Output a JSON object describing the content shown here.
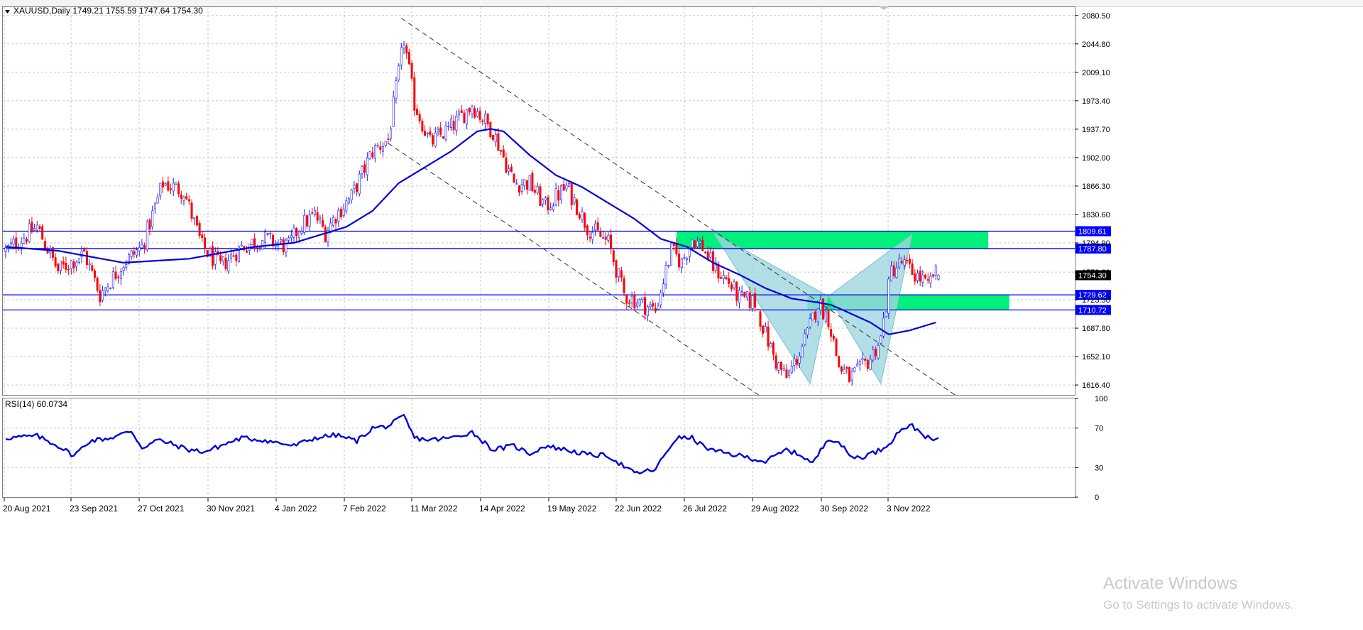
{
  "symbol_header": "XAUUSD,Daily  1749.21 1755.59 1747.64 1754.30",
  "rsi_header": "RSI(14) 60.0734",
  "watermark": {
    "title": "Activate Windows",
    "subtitle": "Go to Settings to activate Windows."
  },
  "colors": {
    "bull": "#1a1aff",
    "bear": "#ff0000",
    "ma": "#0000dd",
    "rsi": "#0000dd",
    "level_line": "#0000ff",
    "zone_fill": "#00f07a",
    "pattern_fill": "#9fd6de",
    "grid": "#c8c8c8",
    "channel": "#303030"
  },
  "chart_data": [
    {
      "type": "candlestick",
      "symbol": "XAUUSD",
      "timeframe": "Daily",
      "last_ohlc": {
        "open": 1749.21,
        "high": 1755.59,
        "low": 1747.64,
        "close": 1754.3
      },
      "current_price_label": "1754.30",
      "y_axis_ticks": [
        "2080.50",
        "2044.80",
        "2009.10",
        "1973.40",
        "1937.70",
        "1902.00",
        "1866.30",
        "1830.60",
        "1794.90",
        "1758.20",
        "1723.50",
        "1687.80",
        "1652.10",
        "1616.40"
      ],
      "ylim": [
        1604,
        2091
      ],
      "x_axis_labels": [
        "20 Aug 2021",
        "23 Sep 2021",
        "27 Oct 2021",
        "30 Nov 2021",
        "4 Jan 2022",
        "7 Feb 2022",
        "11 Mar 2022",
        "14 Apr 2022",
        "19 May 2022",
        "22 Jun 2022",
        "26 Jul 2022",
        "29 Aug 2022",
        "30 Sep 2022",
        "3 Nov 2022"
      ],
      "close_path": {
        "bar_index": [
          0,
          12,
          20,
          30,
          36,
          45,
          52,
          60,
          68,
          75,
          82,
          90,
          98,
          108,
          112,
          118,
          122,
          126,
          132,
          140,
          146,
          152,
          156,
          162,
          170,
          178,
          186,
          194,
          200,
          206,
          214,
          218,
          222,
          230,
          236,
          242,
          248,
          254,
          258,
          262,
          266,
          270,
          276,
          280,
          286,
          290,
          294,
          298,
          302,
          306,
          310,
          314,
          318,
          322,
          326,
          330,
          334,
          338,
          342,
          346,
          350,
          352,
          354,
          356
        ],
        "close": [
          1785,
          1815,
          1760,
          1782,
          1730,
          1770,
          1790,
          1870,
          1860,
          1790,
          1765,
          1790,
          1800,
          1790,
          1815,
          1830,
          1808,
          1830,
          1853,
          1910,
          1925,
          2050,
          1970,
          1920,
          1940,
          1968,
          1935,
          1870,
          1870,
          1840,
          1865,
          1842,
          1815,
          1795,
          1730,
          1720,
          1710,
          1785,
          1770,
          1800,
          1790,
          1765,
          1745,
          1725,
          1720,
          1680,
          1645,
          1625,
          1650,
          1680,
          1720,
          1700,
          1640,
          1625,
          1635,
          1650,
          1675,
          1760,
          1770,
          1758,
          1748,
          1738,
          1756,
          1754
        ]
      },
      "level_lines": [
        {
          "label": "1809.61",
          "price": 1809.61
        },
        {
          "label": "1787.80",
          "price": 1787.8
        },
        {
          "label": "1729.62",
          "price": 1729.62
        },
        {
          "label": "1710.72",
          "price": 1710.72
        }
      ],
      "zones": [
        {
          "price_top": 1809.61,
          "price_bottom": 1787.8,
          "start_bar": 256,
          "end_bar": 375
        },
        {
          "price_top": 1729.62,
          "price_bottom": 1710.72,
          "start_bar": 306,
          "end_bar": 383
        }
      ],
      "pattern_points": [
        {
          "bar": 270,
          "price": 1808
        },
        {
          "bar": 307,
          "price": 1618
        },
        {
          "bar": 314,
          "price": 1728
        },
        {
          "bar": 334,
          "price": 1618
        },
        {
          "bar": 346,
          "price": 1806
        }
      ],
      "channel_lines": [
        {
          "bar_start": 151,
          "price_start": 2077,
          "bar_end": 365,
          "price_end": 1598
        },
        {
          "bar_start": 146,
          "price_start": 1920,
          "bar_end": 290,
          "price_end": 1598
        }
      ],
      "moving_average": {
        "bar_index": [
          0,
          20,
          45,
          70,
          95,
          110,
          130,
          140,
          150,
          160,
          170,
          180,
          185,
          190,
          200,
          210,
          220,
          230,
          240,
          250,
          260,
          270,
          280,
          290,
          300,
          310,
          315,
          320,
          330,
          337,
          345,
          355
        ],
        "value": [
          1790,
          1785,
          1770,
          1775,
          1790,
          1795,
          1815,
          1835,
          1870,
          1890,
          1910,
          1935,
          1938,
          1935,
          1905,
          1880,
          1865,
          1845,
          1825,
          1800,
          1790,
          1770,
          1755,
          1738,
          1725,
          1720,
          1717,
          1710,
          1695,
          1680,
          1685,
          1695
        ]
      },
      "total_bars": 357
    },
    {
      "type": "line",
      "name": "RSI(14)",
      "current_value": 60.0734,
      "y_axis_ticks": [
        "100",
        "70",
        "30",
        "0"
      ],
      "ylim": [
        0,
        100
      ],
      "levels": [
        70,
        30
      ],
      "series": {
        "bar_index": [
          0,
          12,
          20,
          26,
          32,
          40,
          48,
          52,
          58,
          62,
          70,
          76,
          82,
          90,
          98,
          110,
          118,
          126,
          134,
          140,
          146,
          152,
          156,
          162,
          170,
          178,
          186,
          194,
          200,
          206,
          214,
          222,
          230,
          240,
          248,
          252,
          256,
          262,
          266,
          270,
          274,
          282,
          290,
          298,
          304,
          308,
          314,
          318,
          322,
          326,
          330,
          334,
          338,
          342,
          346,
          350,
          352,
          354,
          356
        ],
        "value": [
          60,
          62,
          52,
          42,
          57,
          60,
          67,
          50,
          58,
          55,
          48,
          46,
          52,
          60,
          58,
          52,
          60,
          63,
          57,
          70,
          72,
          82,
          60,
          58,
          60,
          66,
          48,
          52,
          44,
          52,
          48,
          43,
          42,
          24,
          28,
          45,
          60,
          60,
          52,
          47,
          45,
          41,
          36,
          48,
          42,
          34,
          60,
          56,
          42,
          40,
          44,
          48,
          57,
          70,
          72,
          64,
          60,
          57,
          60
        ]
      }
    }
  ]
}
